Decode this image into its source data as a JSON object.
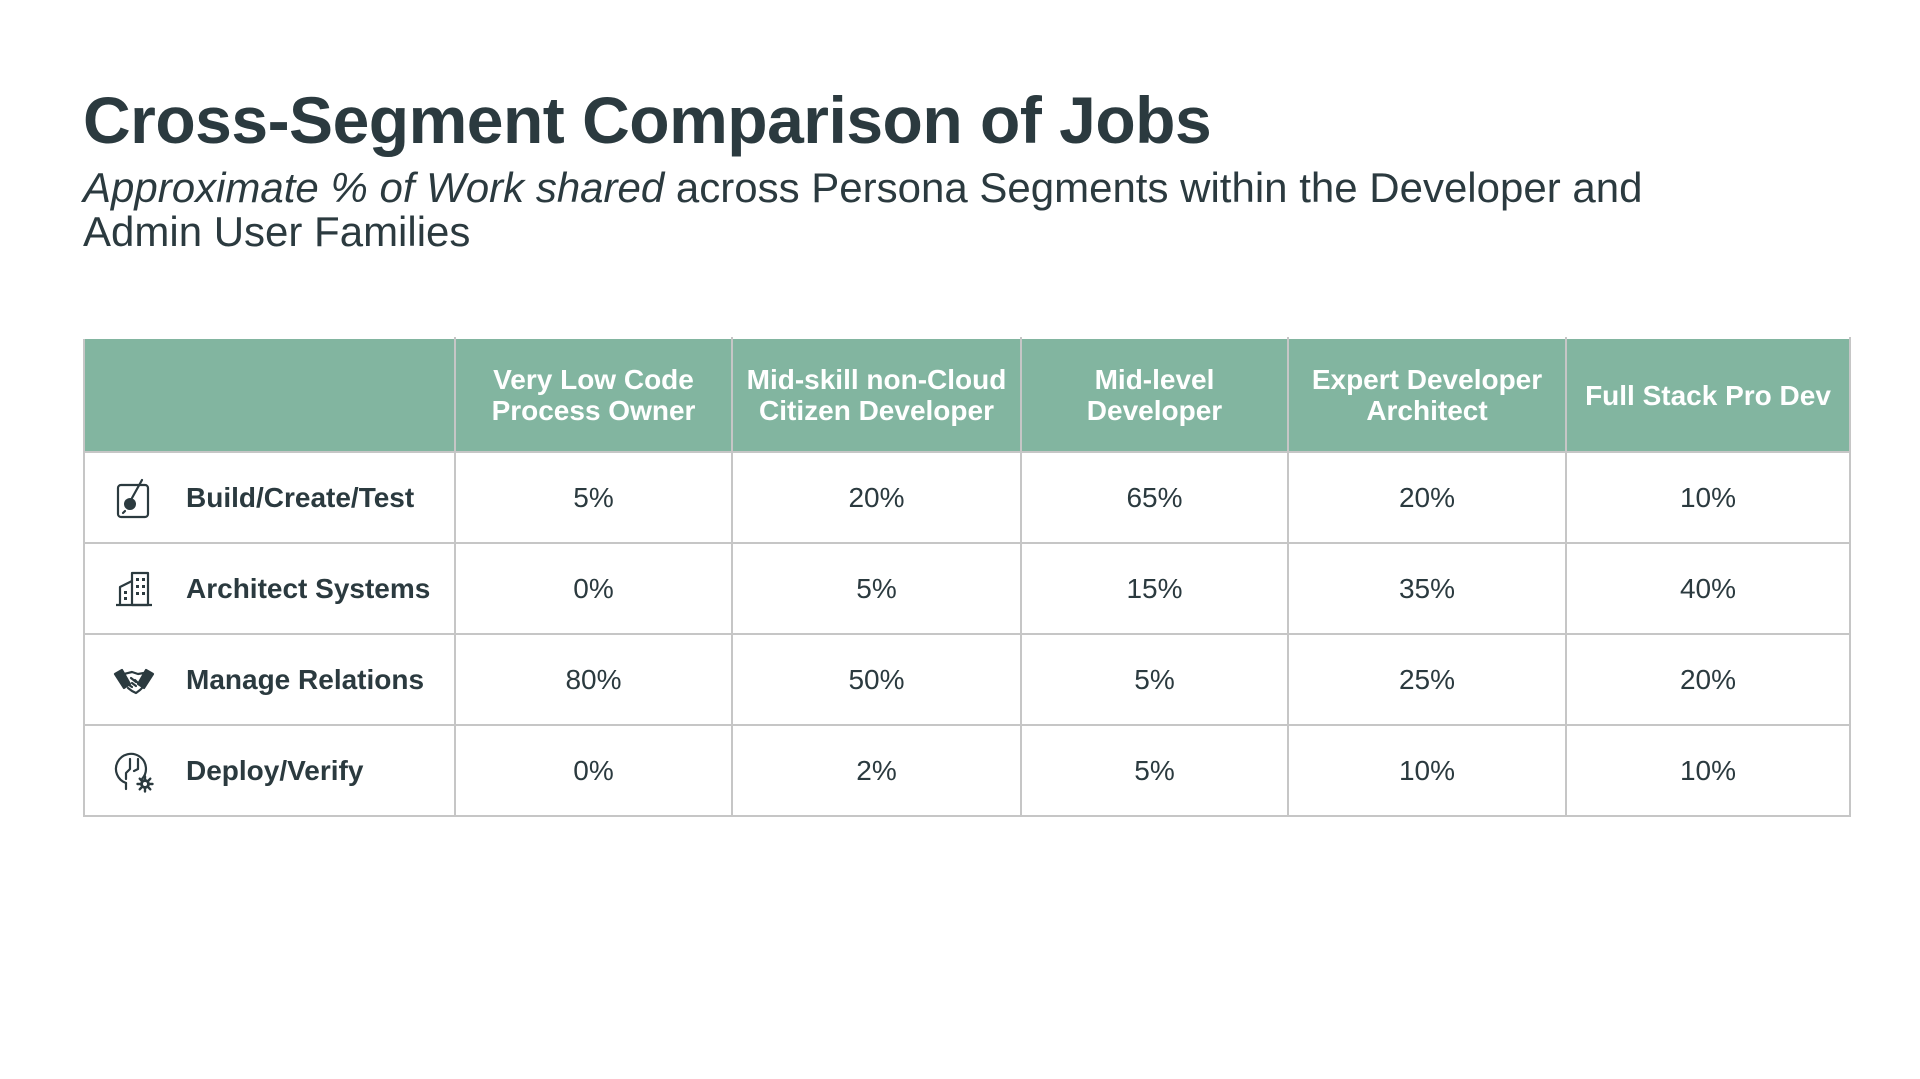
{
  "title": "Cross-Segment Comparison of Jobs",
  "subtitle": {
    "italic_part": "Approximate % of Work shared",
    "rest": " across Persona Segments within the Developer and Admin User Families"
  },
  "table": {
    "header_color": "#82b5a0",
    "columns": [
      "Very Low Code Process Owner",
      "Mid-skill non-Cloud Citizen Developer",
      "Mid-level Developer",
      "Expert Developer Architect",
      "Full Stack Pro Dev"
    ],
    "rows": [
      {
        "label": "Build/Create/Test",
        "icon": "build-test-icon",
        "values": [
          "5%",
          "20%",
          "65%",
          "20%",
          "10%"
        ]
      },
      {
        "label": "Architect Systems",
        "icon": "building-icon",
        "values": [
          "0%",
          "5%",
          "15%",
          "35%",
          "40%"
        ]
      },
      {
        "label": "Manage Relations",
        "icon": "handshake-icon",
        "values": [
          "80%",
          "50%",
          "5%",
          "25%",
          "20%"
        ]
      },
      {
        "label": "Deploy/Verify",
        "icon": "deploy-gear-icon",
        "values": [
          "0%",
          "2%",
          "5%",
          "10%",
          "10%"
        ]
      }
    ]
  }
}
